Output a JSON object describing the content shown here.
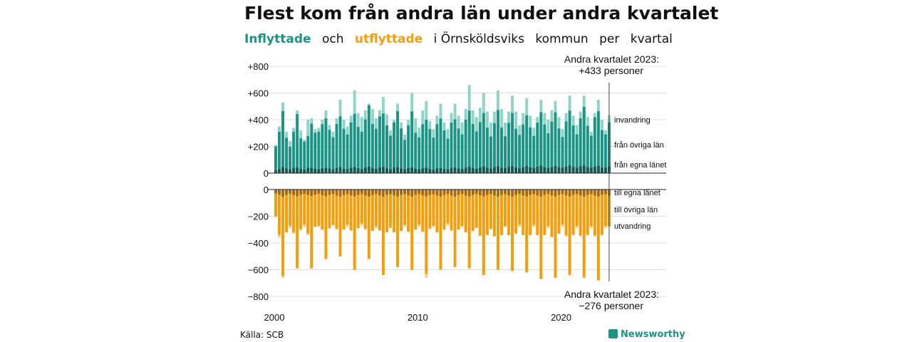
{
  "title": "Flest kom från andra län under andra kvartalet",
  "subtitle": {
    "part1": "Inflyttade",
    "part2": "och",
    "part3": "utflyttade",
    "part4": "i Örnsköldsviks",
    "part5": "kommun",
    "part6": "per",
    "part7": "kvartal"
  },
  "source": "Källa: SCB",
  "brand": "Newsworthy",
  "colors": {
    "in_total": "#8fd5c6",
    "in_other": "#1a9484",
    "in_same": "#16574f",
    "out_total": "#f7d08a",
    "out_other": "#f59e0b",
    "out_same": "#a86a10"
  },
  "chart_data": {
    "type": "bar",
    "stacked": true,
    "x_start_year": 2000,
    "periods": 94,
    "x_ticks": [
      "2000",
      "2010",
      "2020"
    ],
    "y_ticks_top": [
      "+800",
      "+600",
      "+400",
      "+200",
      "0"
    ],
    "y_ticks_bottom": [
      "0",
      "−200",
      "−400",
      "−600",
      "−800"
    ],
    "ylim": [
      -800,
      800
    ],
    "annotations": {
      "top_label": "Andra kvartalet 2023:",
      "top_value": "+433 personer",
      "bottom_label": "Andra kvartalet 2023:",
      "bottom_value": "−276 personer"
    },
    "series_labels": {
      "invandring": "invandring",
      "fran_ovriga": "från övriga län",
      "fran_egna": "från egna länet",
      "till_egna": "till egna länet",
      "till_ovriga": "till övriga län",
      "utvandring": "utvandring"
    },
    "inflyttade": {
      "fran_egna_lanet": [
        20,
        30,
        45,
        35,
        28,
        40,
        42,
        30,
        26,
        38,
        40,
        32,
        30,
        36,
        40,
        34,
        28,
        38,
        45,
        32,
        30,
        40,
        44,
        36,
        30,
        42,
        48,
        38,
        32,
        44,
        46,
        36,
        30,
        40,
        44,
        34,
        28,
        38,
        42,
        32,
        28,
        36,
        40,
        30,
        26,
        36,
        38,
        30,
        28,
        38,
        42,
        34,
        30,
        40,
        48,
        38,
        32,
        42,
        50,
        40,
        34,
        44,
        52,
        40,
        36,
        46,
        50,
        42,
        36,
        44,
        52,
        42,
        38,
        48,
        56,
        44,
        38,
        46,
        54,
        44,
        40,
        48,
        58,
        46,
        40,
        50,
        56,
        44,
        40,
        48,
        54,
        42,
        40,
        50
      ],
      "fran_ovriga_lan": [
        180,
        280,
        420,
        230,
        170,
        270,
        400,
        230,
        210,
        240,
        330,
        270,
        280,
        330,
        370,
        290,
        240,
        330,
        380,
        300,
        260,
        340,
        400,
        310,
        280,
        360,
        460,
        330,
        300,
        380,
        400,
        320,
        250,
        340,
        420,
        300,
        220,
        320,
        420,
        270,
        240,
        330,
        360,
        300,
        240,
        330,
        370,
        290,
        230,
        340,
        360,
        300,
        260,
        360,
        420,
        330,
        280,
        340,
        400,
        300,
        240,
        330,
        420,
        300,
        240,
        330,
        400,
        290,
        250,
        320,
        380,
        300,
        240,
        330,
        400,
        320,
        260,
        340,
        400,
        290,
        230,
        340,
        410,
        310,
        250,
        360,
        440,
        310,
        240,
        370,
        410,
        280,
        250,
        330
      ],
      "total": [
        210,
        350,
        530,
        310,
        240,
        340,
        470,
        320,
        250,
        400,
        410,
        330,
        340,
        400,
        470,
        360,
        310,
        410,
        550,
        400,
        350,
        430,
        620,
        450,
        420,
        470,
        520,
        480,
        410,
        470,
        570,
        440,
        320,
        400,
        520,
        380,
        290,
        400,
        600,
        410,
        340,
        470,
        540,
        390,
        330,
        430,
        520,
        380,
        330,
        450,
        520,
        430,
        380,
        480,
        660,
        470,
        420,
        490,
        600,
        460,
        380,
        460,
        620,
        480,
        380,
        460,
        580,
        460,
        360,
        450,
        560,
        430,
        340,
        420,
        550,
        450,
        400,
        470,
        540,
        420,
        330,
        450,
        580,
        430,
        360,
        460,
        580,
        420,
        310,
        450,
        550,
        400,
        320,
        433
      ]
    },
    "utflyttade": {
      "till_egna_lanet": [
        30,
        40,
        55,
        40,
        32,
        42,
        50,
        40,
        32,
        40,
        48,
        38,
        32,
        42,
        50,
        40,
        34,
        44,
        52,
        40,
        34,
        44,
        52,
        40,
        34,
        44,
        52,
        40,
        34,
        44,
        52,
        40,
        34,
        44,
        52,
        40,
        34,
        44,
        52,
        40,
        34,
        44,
        52,
        40,
        34,
        44,
        52,
        40,
        34,
        44,
        52,
        40,
        34,
        44,
        52,
        40,
        34,
        44,
        52,
        40,
        34,
        44,
        52,
        40,
        34,
        44,
        52,
        40,
        34,
        44,
        52,
        40,
        34,
        44,
        52,
        40,
        34,
        44,
        52,
        40,
        34,
        44,
        52,
        40,
        34,
        44,
        52,
        40,
        34,
        44,
        52,
        40,
        34,
        44
      ],
      "till_ovriga_lan": [
        170,
        300,
        590,
        280,
        240,
        280,
        550,
        260,
        230,
        290,
        560,
        240,
        240,
        260,
        480,
        250,
        230,
        250,
        450,
        260,
        230,
        260,
        560,
        250,
        220,
        250,
        480,
        280,
        240,
        260,
        590,
        280,
        250,
        280,
        530,
        270,
        230,
        270,
        560,
        260,
        230,
        270,
        580,
        250,
        240,
        280,
        560,
        260,
        220,
        260,
        530,
        260,
        240,
        280,
        550,
        270,
        250,
        300,
        600,
        300,
        260,
        310,
        560,
        300,
        240,
        300,
        570,
        290,
        230,
        300,
        580,
        300,
        230,
        300,
        640,
        300,
        240,
        310,
        620,
        290,
        230,
        300,
        590,
        300,
        240,
        300,
        630,
        300,
        240,
        300,
        650,
        300,
        240,
        240
      ],
      "total": [
        -210,
        -360,
        -660,
        -320,
        -290,
        -330,
        -590,
        -300,
        -280,
        -340,
        -590,
        -280,
        -280,
        -300,
        -520,
        -290,
        -270,
        -300,
        -500,
        -300,
        -280,
        -310,
        -600,
        -290,
        -270,
        -300,
        -520,
        -310,
        -290,
        -310,
        -640,
        -320,
        -290,
        -320,
        -580,
        -310,
        -280,
        -320,
        -600,
        -300,
        -280,
        -320,
        -660,
        -300,
        -280,
        -320,
        -600,
        -300,
        -270,
        -310,
        -580,
        -300,
        -280,
        -320,
        -590,
        -310,
        -290,
        -350,
        -640,
        -340,
        -300,
        -350,
        -600,
        -340,
        -280,
        -340,
        -610,
        -330,
        -280,
        -340,
        -620,
        -340,
        -280,
        -340,
        -670,
        -340,
        -290,
        -360,
        -660,
        -330,
        -280,
        -350,
        -640,
        -340,
        -290,
        -350,
        -660,
        -340,
        -290,
        -350,
        -680,
        -340,
        -290,
        -276
      ]
    }
  }
}
